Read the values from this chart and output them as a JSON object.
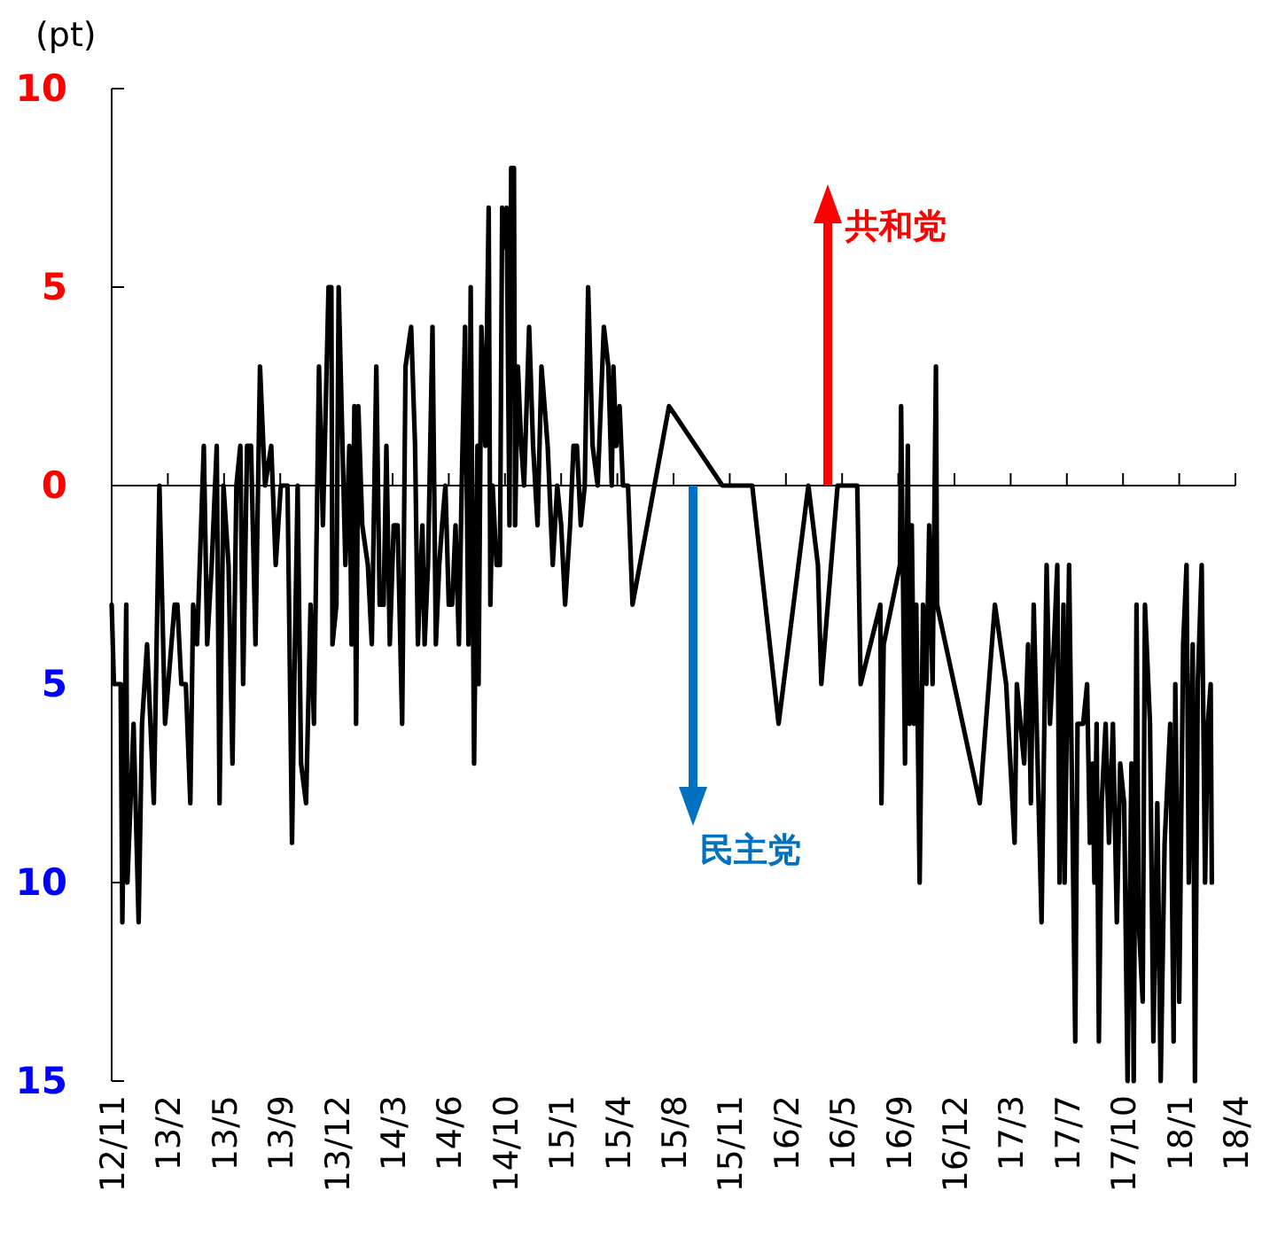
{
  "chart_data": {
    "type": "line",
    "ylabel": "(pt)",
    "annotations": [
      "共和党",
      "民主党"
    ],
    "xlim": [
      "2012-11-05",
      "2018-04-28"
    ],
    "xticks": [
      {
        "value": "2012-11-05",
        "label": "12/11"
      },
      {
        "value": "2013-02-13",
        "label": "13/2"
      },
      {
        "value": "2013-05-24",
        "label": "13/5"
      },
      {
        "value": "2013-09-01",
        "label": "13/9"
      },
      {
        "value": "2013-12-10",
        "label": "13/12"
      },
      {
        "value": "2014-03-20",
        "label": "14/3"
      },
      {
        "value": "2014-06-28",
        "label": "14/6"
      },
      {
        "value": "2014-10-06",
        "label": "14/10"
      },
      {
        "value": "2015-01-14",
        "label": "15/1"
      },
      {
        "value": "2015-04-24",
        "label": "15/4"
      },
      {
        "value": "2015-08-02",
        "label": "15/8"
      },
      {
        "value": "2015-11-10",
        "label": "15/11"
      },
      {
        "value": "2016-02-18",
        "label": "16/2"
      },
      {
        "value": "2016-05-28",
        "label": "16/5"
      },
      {
        "value": "2016-09-05",
        "label": "16/9"
      },
      {
        "value": "2016-12-14",
        "label": "16/12"
      },
      {
        "value": "2017-03-24",
        "label": "17/3"
      },
      {
        "value": "2017-07-02",
        "label": "17/7"
      },
      {
        "value": "2017-10-10",
        "label": "17/10"
      },
      {
        "value": "2018-01-18",
        "label": "18/1"
      },
      {
        "value": "2018-04-28",
        "label": "18/4"
      }
    ],
    "ylim": [
      -15,
      10
    ],
    "yticks": [
      10,
      5,
      0,
      {
        "value": -5,
        "label": "5"
      },
      {
        "value": -10,
        "label": "10"
      },
      {
        "value": -15,
        "label": "15"
      }
    ],
    "marker": "none",
    "line_style": "solid",
    "series": [
      {
        "color": "#000000",
        "x": [
          "2012-11-05",
          "2012-11-09",
          "2012-11-21",
          "2012-11-24",
          "2012-12-01",
          "2012-12-03",
          "2012-12-14",
          "2012-12-23",
          "2012-12-29",
          "2013-01-07",
          "2013-01-19",
          "2013-01-29",
          "2013-02-08",
          "2013-02-25",
          "2013-03-02",
          "2013-03-09",
          "2013-03-17",
          "2013-03-25",
          "2013-03-30",
          "2013-04-06",
          "2013-04-18",
          "2013-04-24",
          "2013-05-02",
          "2013-05-11",
          "2013-05-16",
          "2013-05-23",
          "2013-06-01",
          "2013-06-08",
          "2013-06-15",
          "2013-06-22",
          "2013-06-27",
          "2013-07-04",
          "2013-07-11",
          "2013-07-19",
          "2013-07-27",
          "2013-08-05",
          "2013-08-16",
          "2013-08-24",
          "2013-09-02",
          "2013-09-14",
          "2013-09-22",
          "2013-09-26",
          "2013-10-02",
          "2013-10-08",
          "2013-10-17",
          "2013-10-25",
          "2013-10-31",
          "2013-11-09",
          "2013-11-16",
          "2013-11-26",
          "2013-12-01",
          "2013-12-03",
          "2013-12-10",
          "2013-12-14",
          "2013-12-26",
          "2014-01-02",
          "2014-01-06",
          "2014-01-11",
          "2014-01-14",
          "2014-01-18",
          "2014-01-25",
          "2014-02-04",
          "2014-02-11",
          "2014-02-19",
          "2014-02-25",
          "2014-03-04",
          "2014-03-09",
          "2014-03-15",
          "2014-03-22",
          "2014-03-29",
          "2014-04-06",
          "2014-04-12",
          "2014-04-22",
          "2014-04-29",
          "2014-05-04",
          "2014-05-12",
          "2014-05-16",
          "2014-05-22",
          "2014-05-30",
          "2014-06-05",
          "2014-06-11",
          "2014-06-16",
          "2014-06-22",
          "2014-06-28",
          "2014-07-04",
          "2014-07-10",
          "2014-07-16",
          "2014-07-21",
          "2014-07-27",
          "2014-08-02",
          "2014-08-06",
          "2014-08-12",
          "2014-08-18",
          "2014-08-20",
          "2014-08-25",
          "2014-09-01",
          "2014-09-07",
          "2014-09-10",
          "2014-09-14",
          "2014-09-21",
          "2014-09-27",
          "2014-10-01",
          "2014-10-05",
          "2014-10-09",
          "2014-10-14",
          "2014-10-17",
          "2014-10-22",
          "2014-10-24",
          "2014-10-29",
          "2014-11-04",
          "2014-11-09",
          "2014-11-18",
          "2014-11-25",
          "2014-12-03",
          "2014-12-10",
          "2014-12-21",
          "2014-12-30",
          "2015-01-07",
          "2015-01-14",
          "2015-01-21",
          "2015-01-30",
          "2015-02-05",
          "2015-02-11",
          "2015-02-18",
          "2015-02-25",
          "2015-03-03",
          "2015-03-11",
          "2015-03-20",
          "2015-03-31",
          "2015-04-08",
          "2015-04-14",
          "2015-04-17",
          "2015-04-22",
          "2015-04-28",
          "2015-05-04",
          "2015-05-13",
          "2015-05-21",
          "2015-07-25",
          "2015-10-28",
          "2015-12-20",
          "2016-02-05",
          "2016-03-29",
          "2016-04-15",
          "2016-04-21",
          "2016-05-20",
          "2016-06-24",
          "2016-06-30",
          "2016-08-04",
          "2016-08-06",
          "2016-08-10",
          "2016-09-08",
          "2016-09-10",
          "2016-09-17",
          "2016-09-22",
          "2016-09-25",
          "2016-09-29",
          "2016-10-03",
          "2016-10-07",
          "2016-10-13",
          "2016-10-19",
          "2016-10-25",
          "2016-10-30",
          "2016-11-05",
          "2016-11-11",
          "2016-11-13",
          "2017-01-28",
          "2017-02-24",
          "2017-03-16",
          "2017-03-31",
          "2017-04-04",
          "2017-04-17",
          "2017-04-24",
          "2017-04-29",
          "2017-05-04",
          "2017-05-18",
          "2017-05-27",
          "2017-06-02",
          "2017-06-09",
          "2017-06-15",
          "2017-06-19",
          "2017-06-26",
          "2017-06-28",
          "2017-07-06",
          "2017-07-17",
          "2017-07-21",
          "2017-07-31",
          "2017-08-07",
          "2017-08-12",
          "2017-08-17",
          "2017-08-20",
          "2017-08-24",
          "2017-08-28",
          "2017-09-02",
          "2017-09-09",
          "2017-09-15",
          "2017-09-22",
          "2017-09-29",
          "2017-10-05",
          "2017-10-12",
          "2017-10-18",
          "2017-10-25",
          "2017-10-29",
          "2017-11-03",
          "2017-11-07",
          "2017-11-14",
          "2017-11-18",
          "2017-11-27",
          "2017-12-03",
          "2017-12-10",
          "2017-12-16",
          "2017-12-23",
          "2018-01-02",
          "2018-01-08",
          "2018-01-11",
          "2018-01-18",
          "2018-01-25",
          "2018-01-31",
          "2018-02-04",
          "2018-02-11",
          "2018-02-15",
          "2018-02-20",
          "2018-02-27",
          "2018-03-05",
          "2018-03-10",
          "2018-03-15",
          "2018-03-17"
        ],
        "values": [
          -3,
          -5,
          -5,
          -11,
          -3,
          -10,
          -6,
          -11,
          -6,
          -4,
          -8,
          0,
          -6,
          -3,
          -3,
          -5,
          -5,
          -8,
          -3,
          -4,
          1,
          -4,
          -2,
          1,
          -8,
          0,
          -2,
          -7,
          0,
          1,
          -5,
          1,
          1,
          -4,
          3,
          0,
          1,
          -2,
          0,
          0,
          -9,
          -5,
          0,
          -7,
          -8,
          -3,
          -6,
          3,
          -1,
          5,
          5,
          -4,
          -3,
          5,
          -2,
          1,
          -4,
          2,
          -6,
          2,
          -1,
          -2,
          -4,
          3,
          -3,
          -3,
          1,
          -4,
          -1,
          -1,
          -6,
          3,
          4,
          1,
          -4,
          -1,
          -4,
          -2,
          4,
          -4,
          -2,
          -1,
          0,
          -3,
          -3,
          -1,
          -4,
          0,
          4,
          -4,
          5,
          -7,
          1,
          -5,
          4,
          1,
          7,
          -3,
          0,
          -2,
          -2,
          7,
          6,
          7,
          -1,
          8,
          8,
          -1,
          3,
          1,
          0,
          4,
          1,
          -1,
          3,
          1,
          -2,
          0,
          -1,
          -3,
          -1,
          1,
          1,
          -1,
          0,
          5,
          1,
          0,
          4,
          3,
          0,
          3,
          1,
          2,
          0,
          0,
          -3,
          2,
          0,
          0,
          -6,
          0,
          -2,
          -5,
          0,
          0,
          -5,
          -3,
          -8,
          -4,
          -2,
          2,
          -7,
          1,
          -6,
          -1,
          -6,
          -3,
          -10,
          -3,
          -5,
          -1,
          -5,
          3,
          -3,
          -8,
          -3,
          -5,
          -9,
          -5,
          -7,
          -4,
          -8,
          -3,
          -11,
          -2,
          -6,
          -4,
          -2,
          -10,
          -3,
          -10,
          -2,
          -14,
          -6,
          -6,
          -5,
          -9,
          -7,
          -10,
          -6,
          -14,
          -8,
          -6,
          -9,
          -6,
          -11,
          -7,
          -8,
          -15,
          -7,
          -15,
          -3,
          -11,
          -13,
          -3,
          -6,
          -14,
          -8,
          -15,
          -9,
          -6,
          -14,
          -5,
          -13,
          -4,
          -2,
          -10,
          -4,
          -15,
          -5,
          -2,
          -10,
          -6,
          -5,
          -10
        ]
      }
    ]
  }
}
